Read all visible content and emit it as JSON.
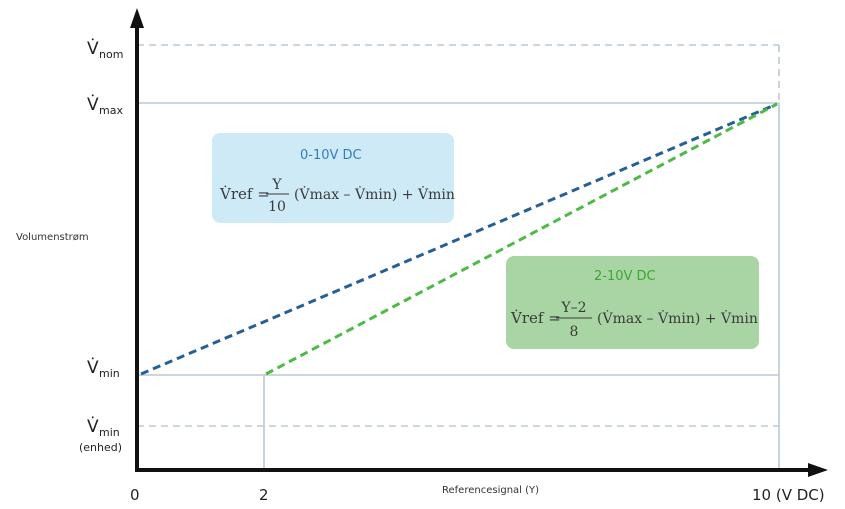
{
  "y_axis": {
    "title": "Volumenstrøm",
    "labels": [
      {
        "key": "nom",
        "main": "V̇",
        "sub": "nom"
      },
      {
        "key": "max",
        "main": "V̇",
        "sub": "max"
      },
      {
        "key": "min",
        "main": "V̇",
        "sub": "min"
      },
      {
        "key": "min_unit",
        "main": "V̇",
        "sub": "min",
        "extra": "(enhed)"
      }
    ]
  },
  "x_axis": {
    "title": "Referencesignal (Y)",
    "ticks": [
      "0",
      "2",
      "10 (V DC)"
    ]
  },
  "boxes": {
    "v0_10": {
      "title": "0-10V DC",
      "lhs": "V̇ref =",
      "frac_num": "Y",
      "frac_den": "10",
      "rhs": "(V̇max – V̇min) + V̇min",
      "bg": "#cfeaf7",
      "title_color": "#2f7fc0"
    },
    "v2_10": {
      "title": "2-10V DC",
      "lhs": "V̇ref =",
      "frac_num": "Y–2",
      "frac_den": "8",
      "rhs": "(V̇max – V̇min) + V̇min",
      "bg": "#a9d5a4",
      "title_color": "#3aa832"
    }
  },
  "colors": {
    "line_0_10": "#245f96",
    "line_2_10": "#4cbb45",
    "grid_solid": "#b9c9d8",
    "grid_dashed": "#b9c9d8",
    "axis": "#111111"
  }
}
